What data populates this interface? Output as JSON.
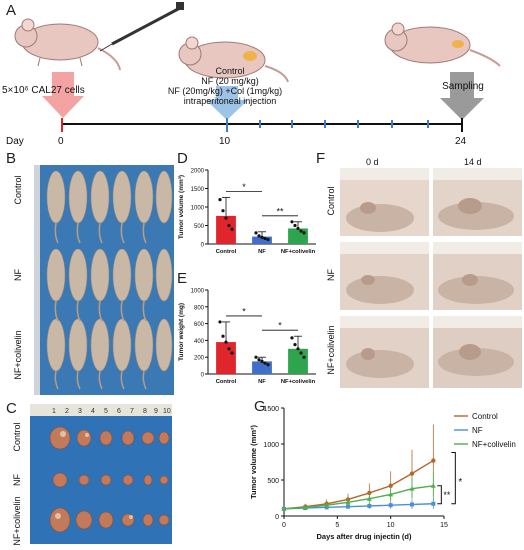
{
  "panels": {
    "A": "A",
    "B": "B",
    "C": "C",
    "D": "D",
    "E": "E",
    "F": "F",
    "G": "G"
  },
  "timeline": {
    "inoculation": "5×10⁶ CAL27 cells",
    "treatment_lines": [
      "Control",
      "NF (20 mg/kg)",
      "NF (20mg/kg) +Col (1mg/kg)",
      "intraperitoneal injection"
    ],
    "sampling": "Sampling",
    "day_label": "Day",
    "ticks": [
      "0",
      "10",
      "24"
    ]
  },
  "panel_b": {
    "row_labels": [
      "Control",
      "NF",
      "NF+colivelin"
    ]
  },
  "panel_c": {
    "row_labels": [
      "Control",
      "NF",
      "NF+colivelin"
    ],
    "ruler": [
      "1",
      "2",
      "3",
      "4",
      "5",
      "6",
      "7",
      "8",
      "9",
      "10"
    ]
  },
  "panel_f": {
    "col_labels": [
      "0 d",
      "14 d"
    ],
    "row_labels": [
      "Control",
      "NF",
      "NF+colivelin"
    ]
  },
  "colors": {
    "control": "#e0262d",
    "nf": "#3f6fc8",
    "colivelin": "#2ea44f",
    "g_control": "#b8652b",
    "g_nf": "#4b8fd6",
    "g_colivelin": "#4caf50",
    "arrow_pink": "#f4a3a3",
    "arrow_blue": "#9dc3e6",
    "arrow_gray": "#9a9a9a"
  },
  "chart_data": [
    {
      "id": "D",
      "type": "bar",
      "categories": [
        "Control",
        "NF",
        "NF+colivelin"
      ],
      "values": [
        760,
        200,
        420
      ],
      "errors": [
        500,
        130,
        180
      ],
      "points": [
        [
          1200,
          900,
          700,
          500,
          400
        ],
        [
          300,
          220,
          180,
          150,
          120
        ],
        [
          600,
          500,
          420,
          350,
          300
        ]
      ],
      "ylabel": "Tumor volume (mm³)",
      "ylim": [
        0,
        2000
      ],
      "yticks": [
        "0",
        "500",
        "1000",
        "1500",
        "2000"
      ],
      "significance": [
        {
          "from": 0,
          "to": 1,
          "label": "*"
        },
        {
          "from": 1,
          "to": 2,
          "label": "**"
        }
      ]
    },
    {
      "id": "E",
      "type": "bar",
      "categories": [
        "Control",
        "NF",
        "NF+colivelin"
      ],
      "values": [
        380,
        150,
        300
      ],
      "errors": [
        240,
        50,
        150
      ],
      "points": [
        [
          620,
          450,
          380,
          300,
          250
        ],
        [
          200,
          170,
          150,
          130,
          110
        ],
        [
          430,
          350,
          300,
          250,
          200
        ]
      ],
      "ylabel": "Tumor weight (mg)",
      "ylim": [
        0,
        1000
      ],
      "yticks": [
        "0",
        "200",
        "400",
        "600",
        "800",
        "1000"
      ],
      "significance": [
        {
          "from": 0,
          "to": 1,
          "label": "*"
        },
        {
          "from": 1,
          "to": 2,
          "label": "*"
        }
      ]
    },
    {
      "id": "G",
      "type": "line",
      "x": [
        0,
        2,
        4,
        6,
        8,
        10,
        12,
        14
      ],
      "series": [
        {
          "name": "Control",
          "values": [
            100,
            130,
            170,
            230,
            320,
            420,
            590,
            770
          ],
          "errors": [
            30,
            40,
            60,
            80,
            130,
            200,
            330,
            500
          ]
        },
        {
          "name": "NF",
          "values": [
            100,
            110,
            120,
            130,
            140,
            150,
            160,
            170
          ],
          "errors": [
            20,
            20,
            25,
            30,
            40,
            50,
            60,
            70
          ]
        },
        {
          "name": "NF+colivelin",
          "values": [
            100,
            115,
            150,
            190,
            240,
            300,
            380,
            420
          ],
          "errors": [
            25,
            30,
            40,
            60,
            80,
            110,
            150,
            200
          ]
        }
      ],
      "xlabel": "Days after drug injectin (d)",
      "ylabel": "Tumor volume (mm³)",
      "xlim": [
        0,
        15
      ],
      "ylim": [
        0,
        1500
      ],
      "xticks": [
        "0",
        "5",
        "10",
        "15"
      ],
      "yticks": [
        "0",
        "500",
        "1000",
        "1500"
      ],
      "significance": [
        {
          "label": "**"
        },
        {
          "label": "*"
        }
      ],
      "legend_position": "top-right"
    }
  ]
}
